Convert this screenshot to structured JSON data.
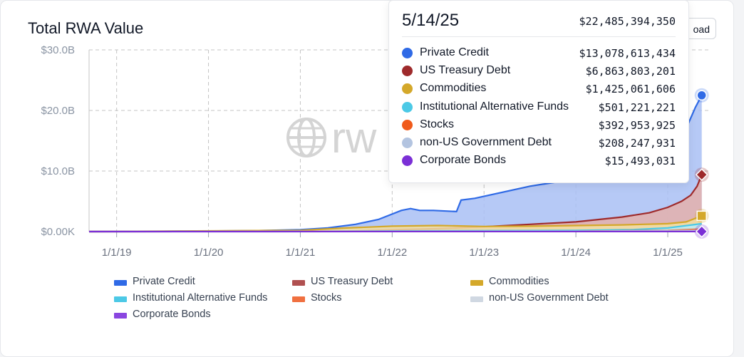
{
  "header": {
    "title": "Total RWA Value",
    "download_label": "oad"
  },
  "watermark": "rw",
  "tooltip": {
    "date": "5/14/25",
    "total": "$22,485,394,350",
    "rows": [
      {
        "name": "Private Credit",
        "value": "$13,078,613,434",
        "color": "#2f6ae6"
      },
      {
        "name": "US Treasury Debt",
        "value": "$6,863,803,201",
        "color": "#9e2a2b"
      },
      {
        "name": "Commodities",
        "value": "$1,425,061,606",
        "color": "#d4a82a"
      },
      {
        "name": "Institutional Alternative Funds",
        "value": "$501,221,221",
        "color": "#4cc9e6"
      },
      {
        "name": "Stocks",
        "value": "$392,953,925",
        "color": "#f05a1a"
      },
      {
        "name": "non-US Government Debt",
        "value": "$208,247,931",
        "color": "#b3c4e0"
      },
      {
        "name": "Corporate Bonds",
        "value": "$15,493,031",
        "color": "#7b2fd6"
      }
    ]
  },
  "chart_data": {
    "type": "area",
    "title": "Total RWA Value",
    "y_ticks": [
      "$0.00K",
      "$10.0B",
      "$20.0B",
      "$30.0B"
    ],
    "x_ticks": [
      "1/1/19",
      "1/1/20",
      "1/1/21",
      "1/1/22",
      "1/1/23",
      "1/1/24",
      "1/1/25"
    ],
    "ylim": [
      0,
      30
    ],
    "y_unit": "B USD",
    "xlim": [
      2018.7,
      2025.45
    ],
    "grid": true,
    "legend_position": "bottom",
    "series": [
      {
        "name": "Private Credit",
        "color": "#2f6ae6",
        "fill": "#a9c0f5",
        "points": [
          [
            2018.7,
            0
          ],
          [
            2019.5,
            0.05
          ],
          [
            2020.5,
            0.15
          ],
          [
            2021.0,
            0.3
          ],
          [
            2021.3,
            0.6
          ],
          [
            2021.6,
            1.2
          ],
          [
            2021.85,
            2.0
          ],
          [
            2022.1,
            3.5
          ],
          [
            2022.2,
            3.8
          ],
          [
            2022.3,
            3.5
          ],
          [
            2022.45,
            3.5
          ],
          [
            2022.7,
            3.3
          ],
          [
            2022.75,
            5.2
          ],
          [
            2022.9,
            5.5
          ],
          [
            2023.2,
            6.5
          ],
          [
            2023.5,
            7.5
          ],
          [
            2023.8,
            8.2
          ],
          [
            2024.0,
            8.6
          ],
          [
            2024.3,
            9.0
          ],
          [
            2024.6,
            10.0
          ],
          [
            2024.9,
            11.5
          ],
          [
            2025.05,
            13.0
          ],
          [
            2025.2,
            17.0
          ],
          [
            2025.3,
            20.5
          ],
          [
            2025.37,
            22.5
          ]
        ]
      },
      {
        "name": "US Treasury Debt",
        "color": "#9e2a2b",
        "fill": "#e4b0ac",
        "points": [
          [
            2018.7,
            0
          ],
          [
            2021.5,
            0.05
          ],
          [
            2022.0,
            0.3
          ],
          [
            2022.5,
            0.5
          ],
          [
            2023.0,
            0.8
          ],
          [
            2023.5,
            1.2
          ],
          [
            2024.0,
            1.6
          ],
          [
            2024.5,
            2.4
          ],
          [
            2024.8,
            3.1
          ],
          [
            2025.0,
            4.0
          ],
          [
            2025.15,
            5.0
          ],
          [
            2025.25,
            6.0
          ],
          [
            2025.32,
            7.5
          ],
          [
            2025.37,
            9.4
          ]
        ]
      },
      {
        "name": "Commodities",
        "color": "#d4a82a",
        "fill": "#f3dfa2",
        "points": [
          [
            2018.7,
            0
          ],
          [
            2021.0,
            0.2
          ],
          [
            2021.5,
            0.6
          ],
          [
            2022.0,
            0.9
          ],
          [
            2022.5,
            1.0
          ],
          [
            2023.0,
            0.85
          ],
          [
            2023.5,
            0.9
          ],
          [
            2024.0,
            1.0
          ],
          [
            2024.5,
            1.1
          ],
          [
            2025.0,
            1.3
          ],
          [
            2025.2,
            1.6
          ],
          [
            2025.37,
            2.6
          ]
        ]
      },
      {
        "name": "Institutional Alternative Funds",
        "color": "#4cc9e6",
        "fill": "#b8ecf7",
        "points": [
          [
            2018.7,
            0
          ],
          [
            2021.2,
            0.05
          ],
          [
            2022.0,
            0.1
          ],
          [
            2023.0,
            0.15
          ],
          [
            2024.0,
            0.2
          ],
          [
            2024.6,
            0.3
          ],
          [
            2025.0,
            0.6
          ],
          [
            2025.37,
            1.3
          ]
        ]
      },
      {
        "name": "Stocks",
        "color": "#f05a1a",
        "fill": "#f7bfa3",
        "points": [
          [
            2018.7,
            0
          ],
          [
            2023.0,
            0.02
          ],
          [
            2024.0,
            0.05
          ],
          [
            2025.0,
            0.2
          ],
          [
            2025.37,
            0.4
          ]
        ]
      },
      {
        "name": "non-US Government Debt",
        "color": "#c5d0de",
        "fill": "#e5eaf1",
        "points": [
          [
            2018.7,
            0
          ],
          [
            2024.0,
            0.05
          ],
          [
            2025.0,
            0.15
          ],
          [
            2025.37,
            0.21
          ]
        ]
      },
      {
        "name": "Corporate Bonds",
        "color": "#7b2fd6",
        "fill": "#cdb3f2",
        "points": [
          [
            2018.7,
            0
          ],
          [
            2025.37,
            0.015
          ]
        ]
      }
    ],
    "markers": [
      {
        "series": "Private Credit",
        "shape": "circle",
        "y": 22.5,
        "color": "#2f6ae6"
      },
      {
        "series": "US Treasury Debt",
        "shape": "diamond",
        "y": 9.4,
        "color": "#9e2a2b"
      },
      {
        "series": "Commodities",
        "shape": "square",
        "y": 2.6,
        "color": "#d4a82a"
      },
      {
        "series": "Corporate Bonds",
        "shape": "diamond",
        "y": 0.015,
        "color": "#7b2fd6"
      }
    ]
  },
  "legend": [
    {
      "name": "Private Credit",
      "color": "#2f6ae6"
    },
    {
      "name": "US Treasury Debt",
      "color": "#b05050"
    },
    {
      "name": "Commodities",
      "color": "#d4a82a"
    },
    {
      "name": "Institutional Alternative Funds",
      "color": "#4cc9e6"
    },
    {
      "name": "Stocks",
      "color": "#f07040"
    },
    {
      "name": "non-US Government Debt",
      "color": "#d0d8e2"
    },
    {
      "name": "Corporate Bonds",
      "color": "#8a46e0"
    }
  ]
}
